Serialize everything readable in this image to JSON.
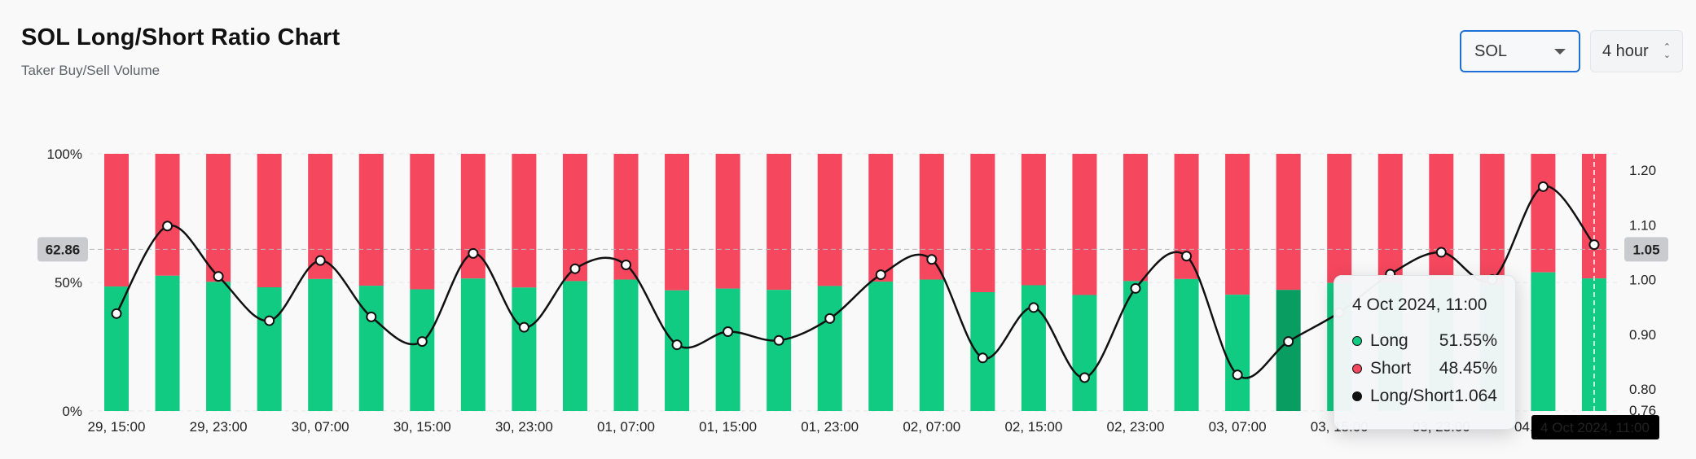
{
  "header": {
    "title": "SOL Long/Short Ratio Chart",
    "subtitle": "Taker Buy/Sell Volume"
  },
  "controls": {
    "coin_value": "SOL",
    "interval_value": "4 hour"
  },
  "colors": {
    "long": "#10cb81",
    "short": "#f5475e",
    "line": "#111111",
    "highlight": "#0a9d62"
  },
  "tooltip": {
    "date": "4 Oct 2024, 11:00",
    "rows": [
      {
        "label": "Long",
        "value": "51.55%",
        "color": "#10cb81"
      },
      {
        "label": "Short",
        "value": "48.45%",
        "color": "#f5475e"
      },
      {
        "label": "Long/Short",
        "value": "1.064",
        "color": "#111111"
      }
    ]
  },
  "chart_data": {
    "type": "bar",
    "stacked": true,
    "title": "",
    "x_tick_labels": [
      "29, 15:00",
      "29, 23:00",
      "30, 07:00",
      "30, 15:00",
      "30, 23:00",
      "01, 07:00",
      "01, 15:00",
      "01, 23:00",
      "02, 07:00",
      "02, 15:00",
      "02, 23:00",
      "03, 07:00",
      "03, 15:00",
      "03, 23:00",
      "04, 07:00"
    ],
    "x_label_indices": [
      0,
      2,
      4,
      6,
      8,
      10,
      12,
      14,
      16,
      18,
      20,
      22,
      24,
      26,
      28
    ],
    "y_left": {
      "ticks": [
        "100%",
        "50%",
        "0%"
      ],
      "range": [
        0,
        100
      ]
    },
    "y_right": {
      "ticks": [
        "1.20",
        "1.10",
        "1.00",
        "0.90",
        "0.80"
      ],
      "range": [
        0.76,
        1.23
      ],
      "min_label": "0.76"
    },
    "crosshair": {
      "left_label": "62.86",
      "right_label": "1.05",
      "x_label": "4 Oct 2024, 11:00"
    },
    "active_index": 29,
    "series": [
      {
        "name": "Long",
        "values": [
          48.4,
          52.6,
          50.2,
          48.1,
          51.3,
          48.7,
          47.3,
          51.5,
          48.0,
          50.5,
          51.1,
          46.9,
          47.6,
          47.1,
          48.6,
          50.3,
          51.1,
          46.2,
          48.9,
          45.1,
          50.5,
          51.3,
          45.2,
          47.1,
          49.8,
          50.2,
          51.0,
          49.0,
          53.9,
          51.55
        ]
      },
      {
        "name": "Short",
        "values": [
          51.6,
          47.4,
          49.8,
          51.9,
          48.7,
          51.3,
          52.7,
          48.5,
          52.0,
          49.5,
          48.9,
          53.1,
          52.4,
          52.9,
          51.4,
          49.7,
          48.9,
          53.8,
          51.1,
          54.9,
          49.5,
          48.7,
          54.8,
          52.9,
          50.2,
          49.8,
          49.0,
          51.0,
          46.1,
          48.45
        ]
      },
      {
        "name": "Long/Short",
        "values": [
          0.938,
          1.098,
          1.006,
          0.925,
          1.035,
          0.932,
          0.887,
          1.048,
          0.913,
          1.02,
          1.027,
          0.881,
          0.905,
          0.889,
          0.929,
          1.009,
          1.037,
          0.857,
          0.949,
          0.821,
          0.984,
          1.043,
          0.826,
          0.887,
          0.94,
          1.01,
          1.05,
          1.0,
          1.17,
          1.064
        ]
      }
    ]
  }
}
